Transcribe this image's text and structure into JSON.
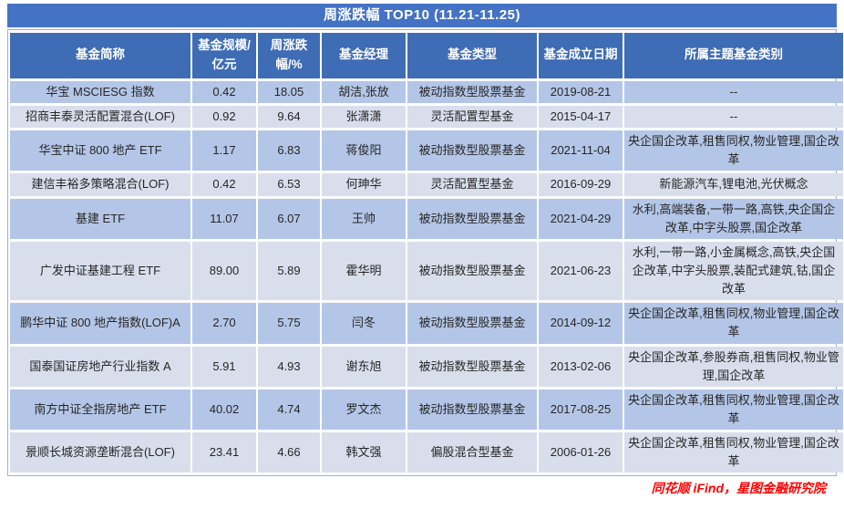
{
  "title": "周涨跌幅 TOP10 (11.21-11.25)",
  "chart_data": {
    "type": "table",
    "title": "周涨跌幅 TOP10 (11.21-11.25)",
    "columns": [
      "基金简称",
      "基金规模/亿元",
      "周涨跌幅/%",
      "基金经理",
      "基金类型",
      "基金成立日期",
      "所属主题基金类别"
    ],
    "rows": [
      [
        "华宝 MSCIESG 指数",
        "0.42",
        "18.05",
        "胡洁,张放",
        "被动指数型股票基金",
        "2019-08-21",
        "--"
      ],
      [
        "招商丰泰灵活配置混合(LOF)",
        "0.92",
        "9.64",
        "张潇潇",
        "灵活配置型基金",
        "2015-04-17",
        "--"
      ],
      [
        "华宝中证 800 地产 ETF",
        "1.17",
        "6.83",
        "蒋俊阳",
        "被动指数型股票基金",
        "2021-11-04",
        "央企国企改革,租售同权,物业管理,国企改革"
      ],
      [
        "建信丰裕多策略混合(LOF)",
        "0.42",
        "6.53",
        "何珅华",
        "灵活配置型基金",
        "2016-09-29",
        "新能源汽车,锂电池,光伏概念"
      ],
      [
        "基建 ETF",
        "11.07",
        "6.07",
        "王帅",
        "被动指数型股票基金",
        "2021-04-29",
        "水利,高端装备,一带一路,高铁,央企国企改革,中字头股票,国企改革"
      ],
      [
        "广发中证基建工程 ETF",
        "89.00",
        "5.89",
        "霍华明",
        "被动指数型股票基金",
        "2021-06-23",
        "水利,一带一路,小金属概念,高铁,央企国企改革,中字头股票,装配式建筑,钴,国企改革"
      ],
      [
        "鹏华中证 800 地产指数(LOF)A",
        "2.70",
        "5.75",
        "闫冬",
        "被动指数型股票基金",
        "2014-09-12",
        "央企国企改革,租售同权,物业管理,国企改革"
      ],
      [
        "国泰国证房地产行业指数 A",
        "5.91",
        "4.93",
        "谢东旭",
        "被动指数型股票基金",
        "2013-02-06",
        "央企国企改革,参股券商,租售同权,物业管理,国企改革"
      ],
      [
        "南方中证全指房地产 ETF",
        "40.02",
        "4.74",
        "罗文杰",
        "被动指数型股票基金",
        "2017-08-25",
        "央企国企改革,租售同权,物业管理,国企改革"
      ],
      [
        "景顺长城资源垄断混合(LOF)",
        "23.41",
        "4.66",
        "韩文强",
        "偏股混合型基金",
        "2006-01-26",
        "央企国企改革,租售同权,物业管理,国企改革"
      ]
    ]
  },
  "footer": {
    "source": "同花顺 iFind，星图金融研究院"
  },
  "colors": {
    "title_bg": "#4472C4",
    "header_bg": "#3E6CB5",
    "row_odd": "#B4C6E7",
    "row_even": "#D8DEEC",
    "footer_text": "#FF0000"
  }
}
